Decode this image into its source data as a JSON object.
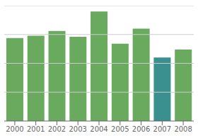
{
  "chart_data": {
    "type": "bar",
    "categories": [
      "2000",
      "2001",
      "2002",
      "2003",
      "2004",
      "2005",
      "2006",
      "2007",
      "2008"
    ],
    "values": [
      72,
      74,
      78,
      73,
      95,
      67,
      80,
      55,
      62
    ],
    "colors": [
      "#6aaa5f",
      "#6aaa5f",
      "#6aaa5f",
      "#6aaa5f",
      "#6aaa5f",
      "#6aaa5f",
      "#6aaa5f",
      "#3a8f8f",
      "#6aaa5f"
    ],
    "ylim": [
      0,
      100
    ],
    "yticks": [
      25,
      50,
      75,
      100
    ],
    "grid": true,
    "tick_labels": "x"
  }
}
